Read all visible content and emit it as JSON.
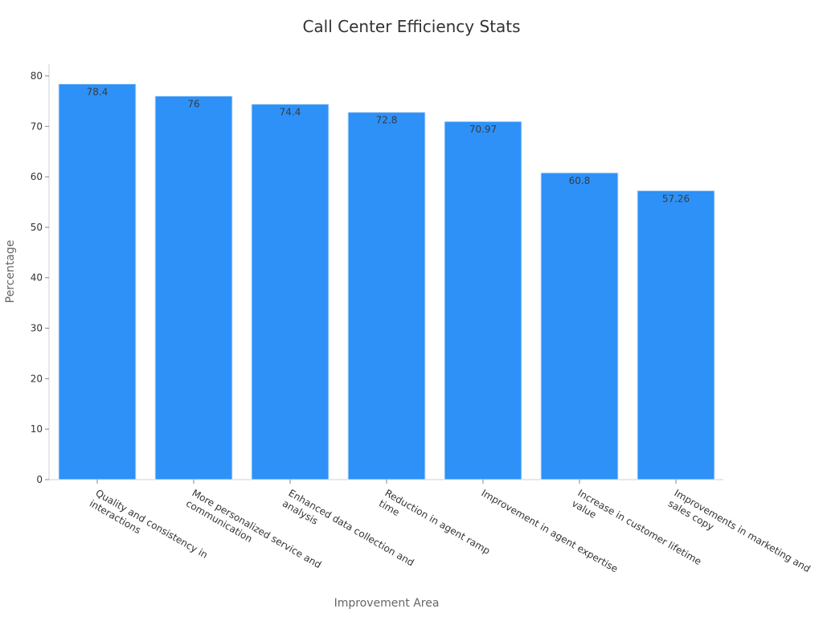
{
  "chart_data": {
    "type": "bar",
    "title": "Call Center Efficiency Stats",
    "xlabel": "Improvement Area",
    "ylabel": "Percentage",
    "ylim": [
      0,
      82.3
    ],
    "yticks": [
      0,
      10,
      20,
      30,
      40,
      50,
      60,
      70,
      80
    ],
    "grid": false,
    "legend": "none",
    "bar_color": "#2d91f8",
    "categories": [
      [
        "Quality and consistency in",
        "interactions"
      ],
      [
        "More personalized service and",
        "communication"
      ],
      [
        "Enhanced data collection and",
        "analysis"
      ],
      [
        "Reduction in agent ramp",
        "time"
      ],
      [
        "Improvement in agent expertise"
      ],
      [
        "Increase in customer lifetime",
        "value"
      ],
      [
        "Improvements in marketing and",
        "sales copy"
      ]
    ],
    "values": [
      78.4,
      76,
      74.4,
      72.8,
      70.97,
      60.8,
      57.26
    ],
    "data_labels": [
      "78.4",
      "76",
      "74.4",
      "72.8",
      "70.97",
      "60.8",
      "57.26"
    ]
  }
}
